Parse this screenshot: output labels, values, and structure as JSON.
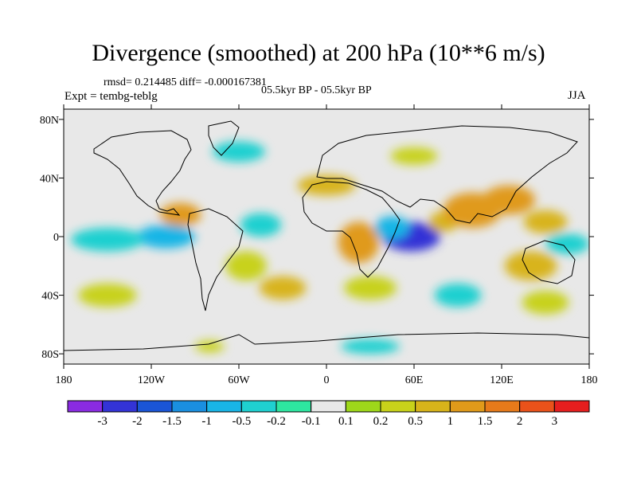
{
  "title": "Divergence (smoothed) at 200 hPa (10**6 m/s)",
  "stats": "rmsd= 0.214485  diff= -0.000167381",
  "experiment": "Expt = tembg-teblg",
  "period": "05.5kyr BP - 05.5kyr BP",
  "season": "JJA",
  "y_ticks": [
    {
      "lat": 80,
      "label": "80N"
    },
    {
      "lat": 40,
      "label": "40N"
    },
    {
      "lat": 0,
      "label": "0"
    },
    {
      "lat": -40,
      "label": "40S"
    },
    {
      "lat": -80,
      "label": "80S"
    }
  ],
  "x_ticks": [
    {
      "lon": -180,
      "label": "180"
    },
    {
      "lon": -120,
      "label": "120W"
    },
    {
      "lon": -60,
      "label": "60W"
    },
    {
      "lon": 0,
      "label": "0"
    },
    {
      "lon": 60,
      "label": "60E"
    },
    {
      "lon": 120,
      "label": "120E"
    },
    {
      "lon": 180,
      "label": "180"
    }
  ],
  "colorbar": {
    "colors": [
      "#8a2be2",
      "#3333d6",
      "#1a55d6",
      "#1a8fe0",
      "#19b5e6",
      "#1fd0d0",
      "#2ee6a0",
      "#e8e8e8",
      "#9ed81a",
      "#c8d21a",
      "#d8b41a",
      "#e09a1a",
      "#e67a1a",
      "#ea521a",
      "#e61e1e"
    ],
    "labels": [
      "-3",
      "-2",
      "-1.5",
      "-1",
      "-0.5",
      "-0.2",
      "-0.1",
      "0.1",
      "0.2",
      "0.5",
      "1",
      "1.5",
      "2",
      "3"
    ]
  },
  "regions": [
    {
      "lon": 22,
      "lat": -4,
      "rx": 14,
      "ry": 14,
      "v": 1
    },
    {
      "lon": 58,
      "lat": 0,
      "rx": 20,
      "ry": 10,
      "v": -3
    },
    {
      "lon": 45,
      "lat": 6,
      "rx": 12,
      "ry": 8,
      "v": -1
    },
    {
      "lon": 80,
      "lat": 10,
      "rx": 10,
      "ry": 7,
      "v": 0.5
    },
    {
      "lon": 100,
      "lat": 18,
      "rx": 20,
      "ry": 12,
      "v": 1
    },
    {
      "lon": 125,
      "lat": 25,
      "rx": 18,
      "ry": 10,
      "v": 1
    },
    {
      "lon": 150,
      "lat": 10,
      "rx": 15,
      "ry": 8,
      "v": 0.5
    },
    {
      "lon": 165,
      "lat": -5,
      "rx": 15,
      "ry": 7,
      "v": -0.5
    },
    {
      "lon": 140,
      "lat": -20,
      "rx": 18,
      "ry": 10,
      "v": 0.5
    },
    {
      "lon": -100,
      "lat": 15,
      "rx": 14,
      "ry": 8,
      "v": 1
    },
    {
      "lon": -110,
      "lat": 0,
      "rx": 20,
      "ry": 8,
      "v": -1
    },
    {
      "lon": -150,
      "lat": -2,
      "rx": 25,
      "ry": 8,
      "v": -0.5
    },
    {
      "lon": -45,
      "lat": 8,
      "rx": 14,
      "ry": 8,
      "v": -0.5
    },
    {
      "lon": -55,
      "lat": -20,
      "rx": 14,
      "ry": 10,
      "v": 0.2
    },
    {
      "lon": -30,
      "lat": -35,
      "rx": 16,
      "ry": 8,
      "v": 0.5
    },
    {
      "lon": 30,
      "lat": -35,
      "rx": 18,
      "ry": 8,
      "v": 0.2
    },
    {
      "lon": 90,
      "lat": -40,
      "rx": 16,
      "ry": 8,
      "v": -0.5
    },
    {
      "lon": 150,
      "lat": -45,
      "rx": 16,
      "ry": 8,
      "v": 0.2
    },
    {
      "lon": -150,
      "lat": -40,
      "rx": 20,
      "ry": 8,
      "v": 0.2
    },
    {
      "lon": 0,
      "lat": 35,
      "rx": 20,
      "ry": 7,
      "v": 0.5
    },
    {
      "lon": -60,
      "lat": 58,
      "rx": 18,
      "ry": 7,
      "v": -0.5
    },
    {
      "lon": 60,
      "lat": 55,
      "rx": 16,
      "ry": 6,
      "v": 0.2
    },
    {
      "lon": 30,
      "lat": -75,
      "rx": 20,
      "ry": 5,
      "v": -0.5
    },
    {
      "lon": -80,
      "lat": -75,
      "rx": 10,
      "ry": 4,
      "v": 0.2
    }
  ]
}
